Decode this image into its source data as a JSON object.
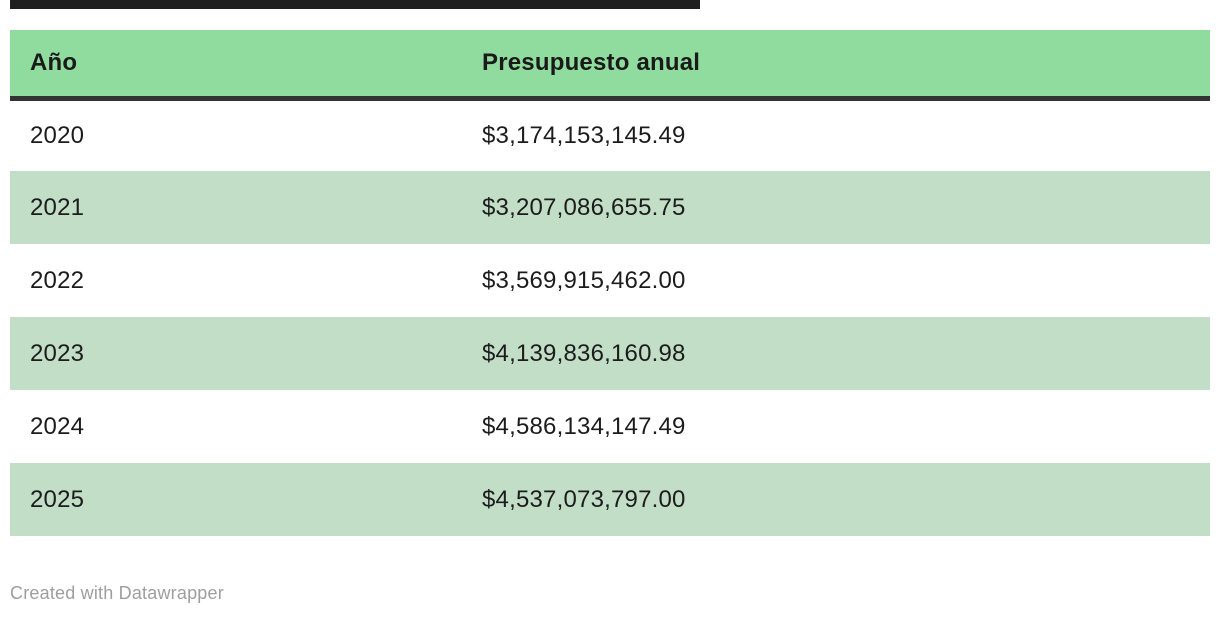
{
  "colors": {
    "header_green": "#90dc9e",
    "stripe_green": "#c2dec7",
    "rule_dark": "#333333",
    "top_bar": "#1f1f1f",
    "text": "#1c1c1c",
    "footer_text": "#9e9e9e"
  },
  "table": {
    "header": {
      "year_label": "Año",
      "budget_label": "Presupuesto anual"
    },
    "rows": [
      {
        "year": "2020",
        "budget": "$3,174,153,145.49"
      },
      {
        "year": "2021",
        "budget": "$3,207,086,655.75"
      },
      {
        "year": "2022",
        "budget": "$3,569,915,462.00"
      },
      {
        "year": "2023",
        "budget": "$4,139,836,160.98"
      },
      {
        "year": "2024",
        "budget": "$4,586,134,147.49"
      },
      {
        "year": "2025",
        "budget": "$4,537,073,797.00"
      }
    ]
  },
  "footer": {
    "attribution": "Created with Datawrapper"
  },
  "chart_data": {
    "type": "table",
    "columns": [
      "Año",
      "Presupuesto anual"
    ],
    "rows": [
      [
        "2020",
        "$3,174,153,145.49"
      ],
      [
        "2021",
        "$3,207,086,655.75"
      ],
      [
        "2022",
        "$3,569,915,462.00"
      ],
      [
        "2023",
        "$4,139,836,160.98"
      ],
      [
        "2024",
        "$4,586,134,147.49"
      ],
      [
        "2025",
        "$4,537,073,797.00"
      ]
    ],
    "budget_values_numeric": [
      3174153145.49,
      3207086655.75,
      3569915462.0,
      4139836160.98,
      4586134147.49,
      4537073797.0
    ],
    "attribution": "Created with Datawrapper",
    "layout_hints": {
      "header_background": "#90dc9e",
      "row_stripe_background": "#c2dec7",
      "striped_rows": [
        "2021",
        "2023",
        "2025"
      ],
      "value_alignment": "left"
    }
  }
}
